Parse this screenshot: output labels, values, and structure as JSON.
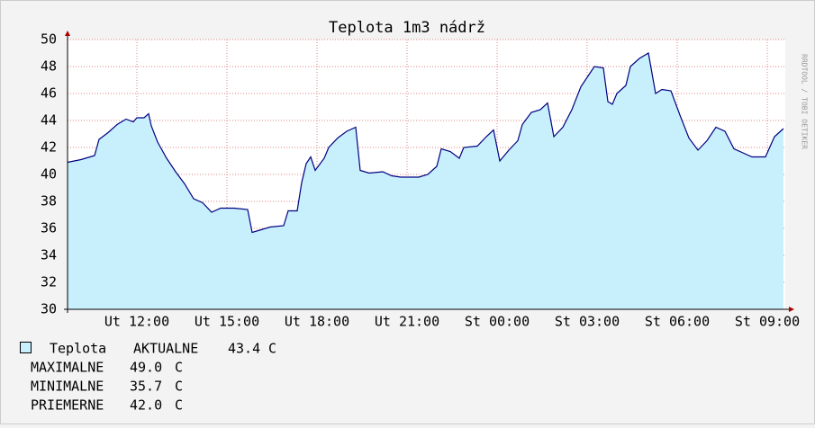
{
  "chart_data": {
    "type": "area",
    "title": "Teplota 1m3 nádrž",
    "credit": "RRDTOOL / TOBI OETIKER",
    "x": [
      9.69,
      10.14,
      10.59,
      10.74,
      11.04,
      11.34,
      11.64,
      11.88,
      12,
      12.24,
      12.39,
      12.48,
      12.69,
      12.99,
      13.29,
      13.59,
      13.89,
      14.19,
      14.49,
      14.79,
      15.24,
      15.69,
      15.84,
      16.14,
      16.44,
      16.89,
      17.04,
      17.34,
      17.49,
      17.64,
      17.79,
      17.94,
      18.24,
      18.39,
      18.69,
      18.99,
      19.29,
      19.44,
      19.74,
      20.19,
      20.49,
      20.79,
      21.09,
      21.39,
      21.69,
      21.99,
      22.14,
      22.44,
      22.74,
      22.89,
      23.34,
      23.64,
      23.88,
      24.09,
      24.39,
      24.69,
      24.84,
      25.14,
      25.44,
      25.68,
      25.89,
      26.19,
      26.49,
      26.79,
      27.09,
      27.24,
      27.54,
      27.69,
      27.84,
      27.99,
      28.29,
      28.44,
      28.74,
      29.04,
      29.28,
      29.49,
      29.79,
      30.09,
      30.39,
      30.69,
      30.99,
      31.29,
      31.59,
      31.89,
      32.19,
      32.49,
      32.94,
      33.24,
      33.54
    ],
    "series": [
      {
        "name": "Teplota",
        "color": "#c8f0fc",
        "line_color": "#000080",
        "values": [
          40.9,
          41.1,
          41.4,
          42.6,
          43.1,
          43.7,
          44.1,
          43.9,
          44.2,
          44.2,
          44.5,
          43.6,
          42.4,
          41.2,
          40.2,
          39.3,
          38.2,
          37.9,
          37.2,
          37.5,
          37.5,
          37.4,
          35.7,
          35.9,
          36.1,
          36.2,
          37.3,
          37.3,
          39.4,
          40.8,
          41.3,
          40.3,
          41.2,
          42.0,
          42.7,
          43.2,
          43.5,
          40.3,
          40.1,
          40.2,
          39.9,
          39.8,
          39.8,
          39.8,
          40.0,
          40.6,
          41.9,
          41.7,
          41.2,
          42.0,
          42.1,
          42.8,
          43.3,
          41.0,
          41.8,
          42.5,
          43.7,
          44.6,
          44.8,
          45.3,
          42.8,
          43.5,
          44.8,
          46.5,
          47.5,
          48.0,
          47.9,
          45.4,
          45.2,
          46.0,
          46.6,
          48.0,
          48.6,
          49.0,
          46.0,
          46.3,
          46.2,
          44.4,
          42.7,
          41.8,
          42.5,
          43.5,
          43.2,
          41.9,
          41.6,
          41.3,
          41.3,
          42.8,
          43.4
        ]
      }
    ],
    "xlim": [
      9.69,
      33.6
    ],
    "xticks": [
      {
        "value": 12,
        "label": "Ut 12:00"
      },
      {
        "value": 15,
        "label": "Ut 15:00"
      },
      {
        "value": 18,
        "label": "Ut 18:00"
      },
      {
        "value": 21,
        "label": "Ut 21:00"
      },
      {
        "value": 24,
        "label": "St 00:00"
      },
      {
        "value": 27,
        "label": "St 03:00"
      },
      {
        "value": 30,
        "label": "St 06:00"
      },
      {
        "value": 33,
        "label": "St 09:00"
      }
    ],
    "ylim": [
      30,
      50
    ],
    "yticks": [
      30,
      32,
      34,
      36,
      38,
      40,
      42,
      44,
      46,
      48,
      50
    ],
    "grid": true,
    "stats": {
      "labels": [
        "AKTUALNE",
        "MAXIMALNE",
        "MINIMALNE",
        "PRIEMERNE"
      ],
      "values": [
        43.4,
        49.0,
        35.7,
        42.0
      ],
      "value_labels": [
        "43.4",
        "49.0",
        "35.7",
        "42.0"
      ],
      "unit": "C"
    }
  }
}
